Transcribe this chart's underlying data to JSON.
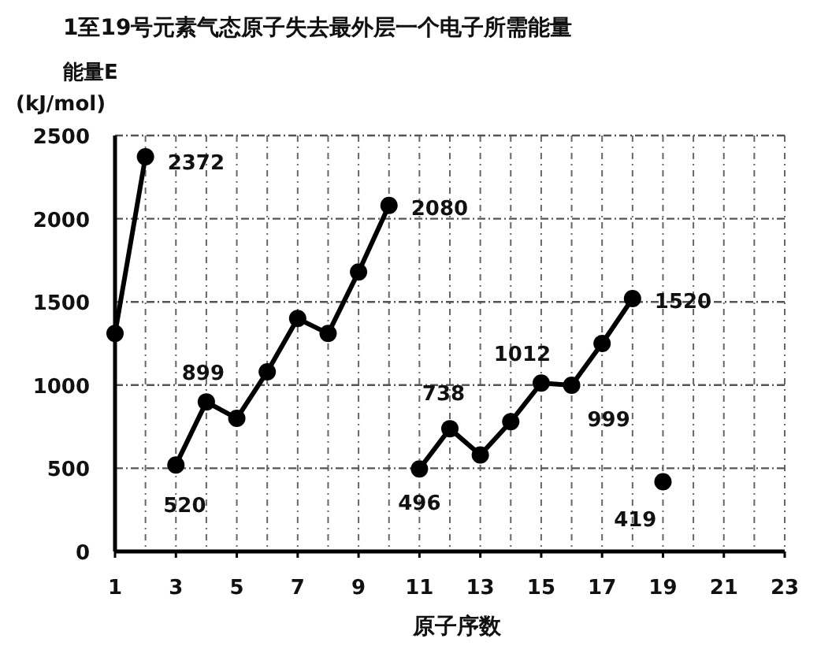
{
  "chart_data": {
    "type": "line",
    "title": "1至19号元素气态原子失去最外层一个电子所需能量",
    "ylabel": "能量E\n(kJ/mol)",
    "xlabel": "原子序数",
    "series": [
      {
        "color": "#000000",
        "x": [
          1,
          2
        ],
        "values": [
          1310,
          2372
        ],
        "value_labels": [
          null,
          "2372"
        ]
      },
      {
        "color": "#000000",
        "x": [
          3,
          4,
          5,
          6,
          7,
          8,
          9,
          10
        ],
        "values": [
          520,
          899,
          800,
          1080,
          1400,
          1310,
          1680,
          2080
        ],
        "value_labels": [
          "520",
          "899",
          null,
          null,
          null,
          null,
          null,
          "2080"
        ]
      },
      {
        "color": "#000000",
        "x": [
          11,
          12,
          13,
          14,
          15,
          16,
          17,
          18
        ],
        "values": [
          496,
          738,
          580,
          780,
          1012,
          999,
          1250,
          1520
        ],
        "value_labels": [
          "496",
          "738",
          null,
          null,
          "1012",
          "999",
          null,
          "1520"
        ]
      },
      {
        "color": "#000000",
        "x": [
          19
        ],
        "values": [
          419
        ],
        "value_labels": [
          "419"
        ]
      }
    ],
    "xlim": [
      1,
      23
    ],
    "xticks": [
      1,
      3,
      5,
      7,
      9,
      11,
      13,
      15,
      17,
      19,
      21,
      23
    ],
    "ylim": [
      0,
      2500
    ],
    "yticks": [
      0,
      500,
      1000,
      1500,
      2000,
      2500
    ],
    "grid": true,
    "marker": "circle",
    "line_style": "solid"
  }
}
